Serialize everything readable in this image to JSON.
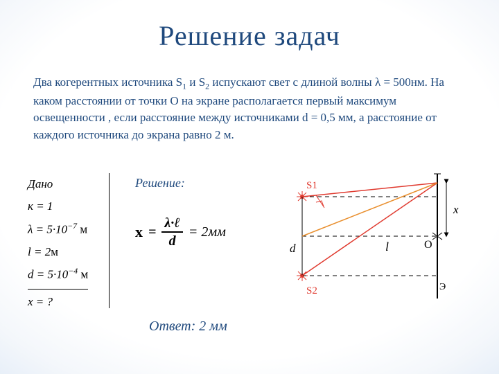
{
  "title": "Решение задач",
  "problem_html": "Два когерентных источника S<sub>1</sub> и S<sub>2</sub> испускают свет с длиной волны λ = 500нм. На каком расстоянии  от точки О на экране располагается первый максимум освещенности , если расстояние между источниками d = 0,5 мм, а расстояние от каждого источника до экрана равно 2 м.",
  "given": {
    "heading": "Дано",
    "l1": "к = 1",
    "l2_html": "λ = 5·10<sup>−7</sup> <span class='norm'>м</span>",
    "l3_html": "l = 2<span class='norm'>м</span>",
    "l4_html": "d = 5·10<sup>−4</sup> <span class='norm'>м</span>",
    "l5": "x = ?"
  },
  "solution": {
    "label": "Решение:",
    "x": "х",
    "eq1": "=",
    "num": "λ·ℓ",
    "den": "d",
    "eq2": "= 2мм"
  },
  "answer": "Ответ: 2 мм",
  "diagram": {
    "s1": "S1",
    "s2": "S2",
    "d": "d",
    "l": "l",
    "o": "O",
    "x": "x",
    "screen": "Э",
    "colors": {
      "ray": "#e03a2f",
      "mid": "#e98f2e",
      "axis": "#000000",
      "s_text": "#e03a2f"
    }
  }
}
